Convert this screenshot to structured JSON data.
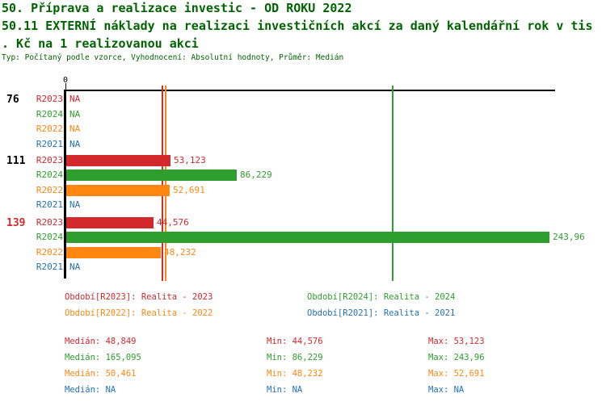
{
  "header": {
    "line1": "50. Příprava a realizace investic - OD ROKU 2022",
    "line2": "50.11 EXTERNÍ náklady na realizaci investičních akcí za daný kalendářní rok v tis",
    "line3": ". Kč na 1 realizovanou akci",
    "meta": "Typ: Počítaný podle vzorce, Vyhodnocení: Absolutní hodnoty, Průměr: Medián"
  },
  "colors": {
    "title": "#006400",
    "axis": "#000000",
    "series": {
      "R2023": "#d2292d",
      "R2024": "#2e9e2e",
      "R2022": "#ff8711",
      "R2021": "#2272b5"
    }
  },
  "chart_data": {
    "type": "bar",
    "orientation": "horizontal",
    "x_axis": {
      "zero_label": "0",
      "range": [
        0,
        247
      ]
    },
    "na_text": "NA",
    "series_order": [
      "R2023",
      "R2024",
      "R2022",
      "R2021"
    ],
    "groups": [
      {
        "label": "76",
        "label_color": "#000000",
        "rows": [
          {
            "series": "R2023",
            "value": null,
            "label": "NA"
          },
          {
            "series": "R2024",
            "value": null,
            "label": "NA"
          },
          {
            "series": "R2022",
            "value": null,
            "label": "NA"
          },
          {
            "series": "R2021",
            "value": null,
            "label": "NA"
          }
        ]
      },
      {
        "label": "111",
        "label_color": "#000000",
        "rows": [
          {
            "series": "R2023",
            "value": 53.123,
            "label": "53,123"
          },
          {
            "series": "R2024",
            "value": 86.229,
            "label": "86,229"
          },
          {
            "series": "R2022",
            "value": 52.691,
            "label": "52,691"
          },
          {
            "series": "R2021",
            "value": null,
            "label": "NA"
          }
        ]
      },
      {
        "label": "139",
        "label_color": "#d2292d",
        "rows": [
          {
            "series": "R2023",
            "value": 44.576,
            "label": "44,576"
          },
          {
            "series": "R2024",
            "value": 243.96,
            "label": "243,96"
          },
          {
            "series": "R2022",
            "value": 48.232,
            "label": "48,232"
          },
          {
            "series": "R2021",
            "value": null,
            "label": "NA"
          }
        ]
      }
    ],
    "median_lines": [
      {
        "series": "R2023",
        "value": 48.849
      },
      {
        "series": "R2022",
        "value": 50.461
      },
      {
        "series": "R2024",
        "value": 165.095
      }
    ]
  },
  "legend": {
    "items": [
      {
        "series": "R2023",
        "label": "Období[R2023]: Realita - 2023"
      },
      {
        "series": "R2024",
        "label": "Období[R2024]: Realita - 2024"
      },
      {
        "series": "R2022",
        "label": "Období[R2022]: Realita - 2022"
      },
      {
        "series": "R2021",
        "label": "Období[R2021]: Realita - 2021"
      }
    ]
  },
  "stats": {
    "labels": {
      "median": "Medián",
      "min": "Min",
      "max": "Max"
    },
    "rows": [
      {
        "series": "R2023",
        "median": "48,849",
        "min": "44,576",
        "max": "53,123"
      },
      {
        "series": "R2024",
        "median": "165,095",
        "min": "86,229",
        "max": "243,96"
      },
      {
        "series": "R2022",
        "median": "50,461",
        "min": "48,232",
        "max": "52,691"
      },
      {
        "series": "R2021",
        "median": "NA",
        "min": "NA",
        "max": "NA"
      }
    ]
  }
}
